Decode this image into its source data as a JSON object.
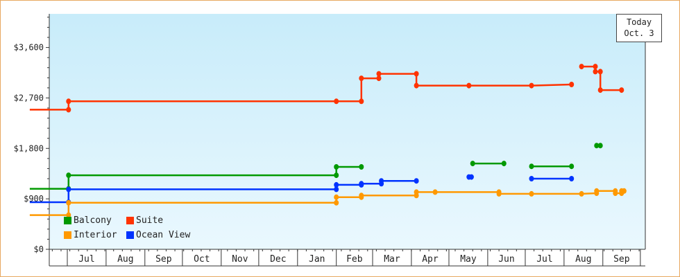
{
  "chart_data": {
    "type": "line",
    "step": true,
    "title": "",
    "xlabel": "",
    "ylabel": "",
    "ylim": [
      0,
      4200
    ],
    "y_ticks": [
      {
        "value": 0,
        "label": "$0"
      },
      {
        "value": 900,
        "label": "$900"
      },
      {
        "value": 1800,
        "label": "$1,800"
      },
      {
        "value": 2700,
        "label": "$2,700"
      },
      {
        "value": 3600,
        "label": "$3,600"
      }
    ],
    "x_range": [
      "2019-06-01",
      "2020-10-01"
    ],
    "x_months": [
      {
        "label": "Jul",
        "start": "2019-07-01"
      },
      {
        "label": "Aug",
        "start": "2019-08-01"
      },
      {
        "label": "Sep",
        "start": "2019-09-01"
      },
      {
        "label": "Oct",
        "start": "2019-10-01"
      },
      {
        "label": "Nov",
        "start": "2019-11-01"
      },
      {
        "label": "Dec",
        "start": "2019-12-01"
      },
      {
        "label": "Jan",
        "start": "2020-01-01"
      },
      {
        "label": "Feb",
        "start": "2020-02-01"
      },
      {
        "label": "Mar",
        "start": "2020-03-01"
      },
      {
        "label": "Apr",
        "start": "2020-04-01"
      },
      {
        "label": "May",
        "start": "2020-05-01"
      },
      {
        "label": "Jun",
        "start": "2020-06-01"
      },
      {
        "label": "Jul",
        "start": "2020-07-01"
      },
      {
        "label": "Aug",
        "start": "2020-08-01"
      },
      {
        "label": "Sep",
        "start": "2020-09-01"
      }
    ],
    "today_label": [
      "Today",
      "Oct. 3"
    ],
    "legend_position": "bottom-left",
    "grid": false,
    "series": [
      {
        "name": "Suite",
        "color": "#ff3300",
        "segments": [
          [
            [
              "2019-06-01",
              2490
            ],
            [
              "2019-07-02",
              2490
            ],
            [
              "2019-07-02",
              2640
            ],
            [
              "2020-02-01",
              2640
            ],
            [
              "2020-02-21",
              2640
            ],
            [
              "2020-02-21",
              3050
            ],
            [
              "2020-03-06",
              3050
            ],
            [
              "2020-03-06",
              3130
            ],
            [
              "2020-04-05",
              3130
            ],
            [
              "2020-04-05",
              2920
            ],
            [
              "2020-05-17",
              2920
            ],
            [
              "2020-07-06",
              2920
            ],
            [
              "2020-08-07",
              2940
            ]
          ],
          [
            [
              "2020-08-15",
              3260
            ],
            [
              "2020-08-26",
              3260
            ],
            [
              "2020-08-26",
              3170
            ],
            [
              "2020-08-30",
              3170
            ],
            [
              "2020-08-30",
              2840
            ],
            [
              "2020-09-16",
              2840
            ]
          ]
        ]
      },
      {
        "name": "Balcony",
        "color": "#009900",
        "segments": [
          [
            [
              "2019-06-01",
              1080
            ],
            [
              "2019-07-02",
              1080
            ],
            [
              "2019-07-02",
              1320
            ],
            [
              "2020-02-01",
              1320
            ],
            [
              "2020-02-01",
              1470
            ],
            [
              "2020-02-21",
              1470
            ]
          ],
          [
            [
              "2020-05-20",
              1530
            ],
            [
              "2020-06-14",
              1530
            ]
          ],
          [
            [
              "2020-07-06",
              1480
            ],
            [
              "2020-08-07",
              1480
            ]
          ],
          [
            [
              "2020-08-27",
              1850
            ],
            [
              "2020-08-30",
              1850
            ]
          ]
        ]
      },
      {
        "name": "Ocean View",
        "color": "#0033ff",
        "segments": [
          [
            [
              "2019-06-01",
              840
            ],
            [
              "2019-07-02",
              840
            ],
            [
              "2019-07-02",
              1070
            ],
            [
              "2020-02-01",
              1070
            ],
            [
              "2020-02-01",
              1150
            ],
            [
              "2020-02-21",
              1150
            ],
            [
              "2020-02-21",
              1170
            ],
            [
              "2020-03-08",
              1170
            ],
            [
              "2020-03-08",
              1220
            ],
            [
              "2020-04-05",
              1220
            ]
          ],
          [
            [
              "2020-05-17",
              1290
            ],
            [
              "2020-05-19",
              1290
            ]
          ],
          [
            [
              "2020-07-06",
              1260
            ],
            [
              "2020-08-07",
              1260
            ]
          ]
        ]
      },
      {
        "name": "Interior",
        "color": "#ff9900",
        "segments": [
          [
            [
              "2019-06-01",
              610
            ],
            [
              "2019-07-02",
              610
            ],
            [
              "2019-07-02",
              830
            ],
            [
              "2020-02-01",
              830
            ],
            [
              "2020-02-01",
              930
            ],
            [
              "2020-02-21",
              930
            ],
            [
              "2020-02-21",
              960
            ],
            [
              "2020-04-05",
              960
            ],
            [
              "2020-04-05",
              1020
            ],
            [
              "2020-04-20",
              1020
            ],
            [
              "2020-06-10",
              1020
            ],
            [
              "2020-06-10",
              990
            ],
            [
              "2020-07-06",
              990
            ],
            [
              "2020-08-15",
              990
            ],
            [
              "2020-08-27",
              1000
            ],
            [
              "2020-08-27",
              1040
            ],
            [
              "2020-09-11",
              1040
            ],
            [
              "2020-09-11",
              1000
            ],
            [
              "2020-09-16",
              1000
            ],
            [
              "2020-09-16",
              1040
            ],
            [
              "2020-09-18",
              1040
            ]
          ]
        ]
      }
    ],
    "legend": [
      {
        "name": "Balcony",
        "color": "#009900"
      },
      {
        "name": "Suite",
        "color": "#ff3300"
      },
      {
        "name": "Interior",
        "color": "#ff9900"
      },
      {
        "name": "Ocean View",
        "color": "#0033ff"
      }
    ]
  }
}
